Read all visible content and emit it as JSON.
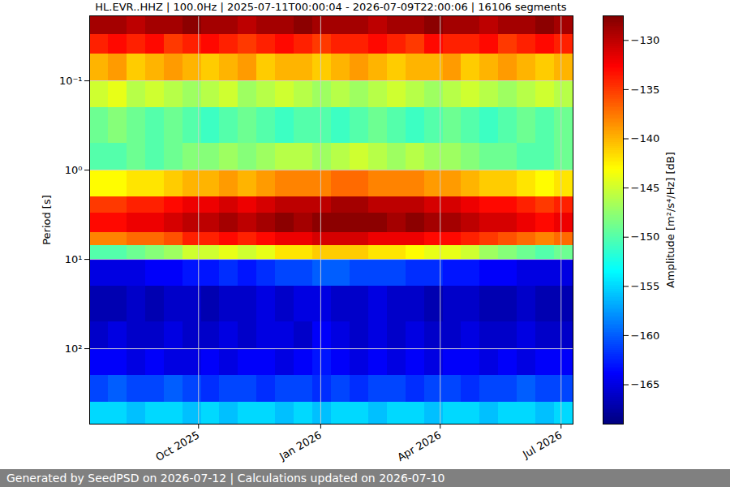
{
  "chart_data": {
    "type": "heatmap",
    "title": "HL.EVR..HHZ | 100.0Hz | 2025-07-11T00:00:04 - 2026-07-09T22:00:06 | 16106 segments",
    "ylabel": "Period [s]",
    "caption": "Generated by SeedPSD on 2026-07-12 | Calculations updated on 2026-07-10",
    "log": "y",
    "grid": true,
    "xlim": [
      "2025-07-11",
      "2026-07-10"
    ],
    "ylim": [
      0.0187,
      700
    ],
    "xticks": [
      {
        "value": "2025-10-01",
        "label": "Oct 2025"
      },
      {
        "value": "2026-01-01",
        "label": "Jan 2026"
      },
      {
        "value": "2026-04-01",
        "label": "Apr 2026"
      },
      {
        "value": "2026-07-01",
        "label": "Jul 2026"
      }
    ],
    "yticks": [
      {
        "value": 0.1,
        "label": "10⁻¹"
      },
      {
        "value": 1,
        "label": "10⁰"
      },
      {
        "value": 10,
        "label": "10¹"
      },
      {
        "value": 100,
        "label": "10²"
      }
    ],
    "x_bins": [
      "2025-07-11",
      "2025-07-25",
      "2025-08-08",
      "2025-08-22",
      "2025-09-05",
      "2025-09-19",
      "2025-10-03",
      "2025-10-17",
      "2025-10-31",
      "2025-11-14",
      "2025-11-28",
      "2025-12-12",
      "2025-12-26",
      "2026-01-09",
      "2026-01-23",
      "2026-02-06",
      "2026-02-20",
      "2026-03-06",
      "2026-03-20",
      "2026-04-03",
      "2026-04-17",
      "2026-05-01",
      "2026-05-15",
      "2026-05-29",
      "2026-06-12",
      "2026-06-26",
      "2026-07-10"
    ],
    "y_bins": [
      0.0187,
      0.03,
      0.05,
      0.1,
      0.2,
      0.5,
      1,
      2,
      3,
      5,
      7,
      10,
      20,
      50,
      100,
      200,
      400,
      700
    ],
    "values": [
      [
        -129,
        -129,
        -130,
        -129,
        -129,
        -128,
        -129,
        -129,
        -130,
        -129,
        -129,
        -128,
        -129,
        -129,
        -129,
        -130,
        -129,
        -129,
        -128,
        -129,
        -129,
        -130,
        -129,
        -129,
        -128,
        -129
      ],
      [
        -134,
        -133,
        -134,
        -133,
        -135,
        -134,
        -133,
        -134,
        -135,
        -134,
        -133,
        -134,
        -135,
        -134,
        -134,
        -133,
        -134,
        -135,
        -133,
        -134,
        -134,
        -133,
        -135,
        -134,
        -133,
        -134
      ],
      [
        -140,
        -139,
        -141,
        -140,
        -139,
        -140,
        -141,
        -140,
        -139,
        -141,
        -140,
        -140,
        -141,
        -140,
        -139,
        -140,
        -141,
        -140,
        -140,
        -139,
        -141,
        -140,
        -139,
        -140,
        -141,
        -140
      ],
      [
        -145,
        -144,
        -146,
        -145,
        -146,
        -147,
        -146,
        -145,
        -147,
        -146,
        -145,
        -146,
        -147,
        -146,
        -147,
        -146,
        -145,
        -146,
        -147,
        -146,
        -145,
        -146,
        -147,
        -146,
        -145,
        -146
      ],
      [
        -149,
        -148,
        -149,
        -150,
        -149,
        -150,
        -151,
        -150,
        -149,
        -150,
        -151,
        -150,
        -150,
        -151,
        -150,
        -149,
        -150,
        -151,
        -150,
        -149,
        -150,
        -151,
        -150,
        -149,
        -150,
        -149
      ],
      [
        -150,
        -150,
        -149,
        -150,
        -149,
        -148,
        -148,
        -147,
        -148,
        -147,
        -146,
        -146,
        -147,
        -146,
        -145,
        -146,
        -147,
        -146,
        -147,
        -147,
        -148,
        -149,
        -149,
        -150,
        -150,
        -149
      ],
      [
        -143,
        -143,
        -142,
        -142,
        -141,
        -140,
        -140,
        -139,
        -140,
        -139,
        -138,
        -138,
        -138,
        -137,
        -137,
        -138,
        -138,
        -138,
        -139,
        -139,
        -140,
        -141,
        -141,
        -142,
        -143,
        -142
      ],
      [
        -135,
        -135,
        -134,
        -134,
        -133,
        -132,
        -132,
        -131,
        -132,
        -131,
        -130,
        -130,
        -130,
        -129,
        -129,
        -130,
        -130,
        -130,
        -131,
        -131,
        -132,
        -133,
        -133,
        -134,
        -135,
        -134
      ],
      [
        -133,
        -133,
        -132,
        -132,
        -131,
        -130,
        -130,
        -129,
        -130,
        -129,
        -128,
        -129,
        -128,
        -128,
        -128,
        -128,
        -129,
        -128,
        -129,
        -129,
        -130,
        -131,
        -131,
        -132,
        -133,
        -132
      ],
      [
        -138,
        -138,
        -137,
        -137,
        -136,
        -134,
        -134,
        -133,
        -134,
        -133,
        -132,
        -132,
        -131,
        -131,
        -131,
        -132,
        -132,
        -132,
        -133,
        -133,
        -134,
        -135,
        -136,
        -137,
        -138,
        -137
      ],
      [
        -150,
        -150,
        -149,
        -148,
        -147,
        -145,
        -145,
        -144,
        -145,
        -144,
        -142,
        -142,
        -141,
        -141,
        -141,
        -142,
        -142,
        -143,
        -144,
        -144,
        -145,
        -147,
        -148,
        -149,
        -150,
        -149
      ],
      [
        -165,
        -165,
        -165,
        -164,
        -164,
        -163,
        -163,
        -162,
        -163,
        -162,
        -161,
        -161,
        -160,
        -160,
        -161,
        -161,
        -161,
        -162,
        -162,
        -163,
        -163,
        -164,
        -164,
        -165,
        -165,
        -165
      ],
      [
        -167,
        -167,
        -166,
        -167,
        -166,
        -166,
        -167,
        -166,
        -166,
        -165,
        -166,
        -165,
        -165,
        -166,
        -166,
        -165,
        -166,
        -166,
        -167,
        -166,
        -166,
        -167,
        -167,
        -166,
        -167,
        -167
      ],
      [
        -166,
        -165,
        -166,
        -166,
        -165,
        -166,
        -166,
        -165,
        -166,
        -165,
        -165,
        -166,
        -164,
        -165,
        -166,
        -165,
        -166,
        -165,
        -166,
        -166,
        -165,
        -166,
        -166,
        -165,
        -166,
        -166
      ],
      [
        -164,
        -164,
        -165,
        -164,
        -165,
        -165,
        -164,
        -165,
        -164,
        -164,
        -165,
        -164,
        -163,
        -164,
        -165,
        -164,
        -165,
        -164,
        -165,
        -164,
        -164,
        -165,
        -164,
        -165,
        -164,
        -164
      ],
      [
        -161,
        -160,
        -161,
        -161,
        -160,
        -161,
        -162,
        -161,
        -161,
        -162,
        -161,
        -161,
        -162,
        -161,
        -162,
        -161,
        -161,
        -162,
        -161,
        -161,
        -162,
        -161,
        -161,
        -160,
        -161,
        -161
      ],
      [
        -155,
        -155,
        -156,
        -155,
        -155,
        -156,
        -155,
        -156,
        -155,
        -155,
        -156,
        -155,
        -156,
        -155,
        -155,
        -156,
        -155,
        -155,
        -156,
        -155,
        -155,
        -156,
        -155,
        -155,
        -156,
        -155
      ]
    ],
    "colorbar": {
      "label": "Amplitude [m²/s⁴/Hz] [dB]",
      "lim": [
        -169,
        -127.5
      ],
      "ticks": [
        -165,
        -160,
        -155,
        -150,
        -145,
        -140,
        -135,
        -130
      ]
    }
  }
}
